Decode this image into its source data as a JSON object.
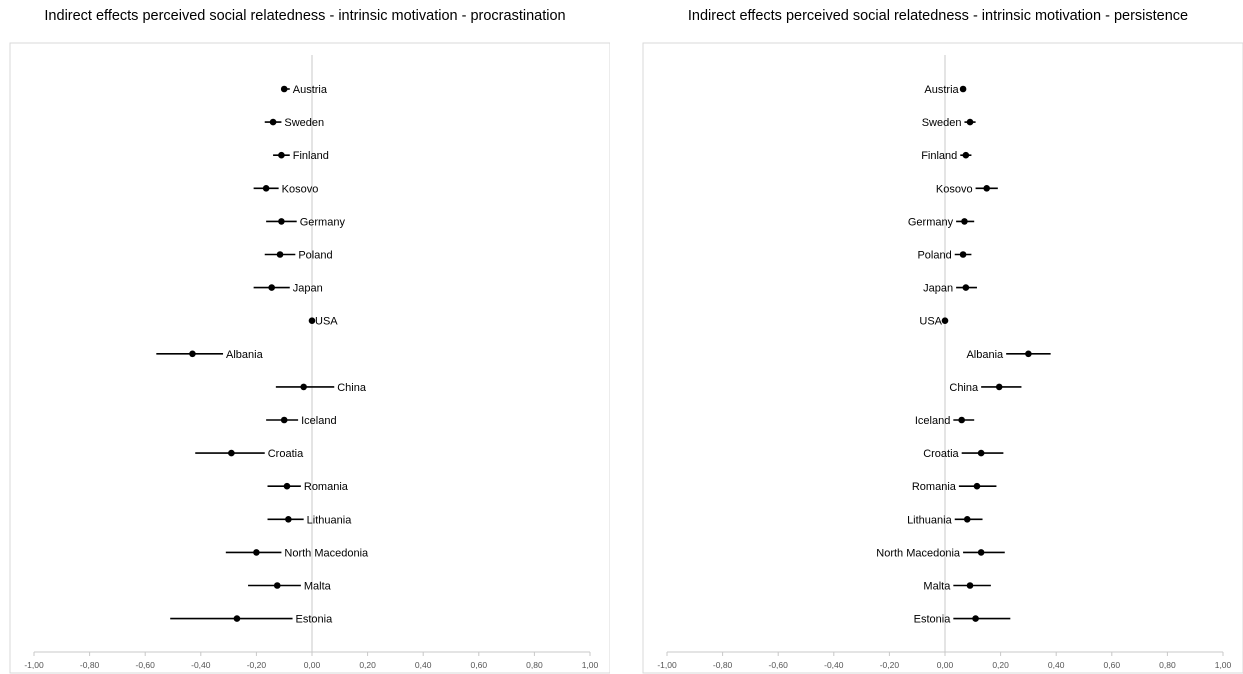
{
  "chart_data": [
    {
      "type": "forest",
      "title": "Indirect effects perceived social relatedness - intrinsic motivation - procrastination",
      "xlim": [
        -1.0,
        1.0
      ],
      "ticks": [
        "-1,00",
        "-0,80",
        "-0,60",
        "-0,40",
        "-0,20",
        "0,00",
        "0,20",
        "0,40",
        "0,60",
        "0,80",
        "1,00"
      ],
      "label_side": "right",
      "grid": false,
      "points": [
        {
          "country": "Austria",
          "est": -0.1,
          "lo": -0.11,
          "hi": -0.08
        },
        {
          "country": "Sweden",
          "est": -0.14,
          "lo": -0.17,
          "hi": -0.11
        },
        {
          "country": "Finland",
          "est": -0.11,
          "lo": -0.14,
          "hi": -0.08
        },
        {
          "country": "Kosovo",
          "est": -0.165,
          "lo": -0.21,
          "hi": -0.12
        },
        {
          "country": "Germany",
          "est": -0.11,
          "lo": -0.165,
          "hi": -0.055
        },
        {
          "country": "Poland",
          "est": -0.115,
          "lo": -0.17,
          "hi": -0.06
        },
        {
          "country": "Japan",
          "est": -0.145,
          "lo": -0.21,
          "hi": -0.08
        },
        {
          "country": "USA",
          "est": 0.0,
          "lo": 0.0,
          "hi": 0.0
        },
        {
          "country": "Albania",
          "est": -0.43,
          "lo": -0.56,
          "hi": -0.32
        },
        {
          "country": "China",
          "est": -0.03,
          "lo": -0.13,
          "hi": 0.08
        },
        {
          "country": "Iceland",
          "est": -0.1,
          "lo": -0.165,
          "hi": -0.05
        },
        {
          "country": "Croatia",
          "est": -0.29,
          "lo": -0.42,
          "hi": -0.17
        },
        {
          "country": "Romania",
          "est": -0.09,
          "lo": -0.16,
          "hi": -0.04
        },
        {
          "country": "Lithuania",
          "est": -0.085,
          "lo": -0.16,
          "hi": -0.03
        },
        {
          "country": "North Macedonia",
          "est": -0.2,
          "lo": -0.31,
          "hi": -0.11
        },
        {
          "country": "Malta",
          "est": -0.125,
          "lo": -0.23,
          "hi": -0.04
        },
        {
          "country": "Estonia",
          "est": -0.27,
          "lo": -0.51,
          "hi": -0.07
        }
      ]
    },
    {
      "type": "forest",
      "title": "Indirect effects perceived social relatedness - intrinsic motivation - persistence",
      "xlim": [
        -1.0,
        1.0
      ],
      "ticks": [
        "-1,00",
        "-0,80",
        "-0,60",
        "-0,40",
        "-0,20",
        "0,00",
        "0,20",
        "0,40",
        "0,60",
        "0,80",
        "1,00"
      ],
      "label_side": "left",
      "grid": false,
      "points": [
        {
          "country": "Austria",
          "est": 0.065,
          "lo": 0.06,
          "hi": 0.07
        },
        {
          "country": "Sweden",
          "est": 0.09,
          "lo": 0.07,
          "hi": 0.11
        },
        {
          "country": "Finland",
          "est": 0.075,
          "lo": 0.055,
          "hi": 0.095
        },
        {
          "country": "Kosovo",
          "est": 0.15,
          "lo": 0.11,
          "hi": 0.19
        },
        {
          "country": "Germany",
          "est": 0.07,
          "lo": 0.04,
          "hi": 0.105
        },
        {
          "country": "Poland",
          "est": 0.065,
          "lo": 0.035,
          "hi": 0.095
        },
        {
          "country": "Japan",
          "est": 0.075,
          "lo": 0.04,
          "hi": 0.115
        },
        {
          "country": "USA",
          "est": 0.0,
          "lo": 0.0,
          "hi": 0.0
        },
        {
          "country": "Albania",
          "est": 0.3,
          "lo": 0.22,
          "hi": 0.38
        },
        {
          "country": "China",
          "est": 0.195,
          "lo": 0.13,
          "hi": 0.275
        },
        {
          "country": "Iceland",
          "est": 0.06,
          "lo": 0.03,
          "hi": 0.105
        },
        {
          "country": "Croatia",
          "est": 0.13,
          "lo": 0.06,
          "hi": 0.21
        },
        {
          "country": "Romania",
          "est": 0.115,
          "lo": 0.05,
          "hi": 0.185
        },
        {
          "country": "Lithuania",
          "est": 0.08,
          "lo": 0.035,
          "hi": 0.135
        },
        {
          "country": "North Macedonia",
          "est": 0.13,
          "lo": 0.065,
          "hi": 0.215
        },
        {
          "country": "Malta",
          "est": 0.09,
          "lo": 0.03,
          "hi": 0.165
        },
        {
          "country": "Estonia",
          "est": 0.11,
          "lo": 0.03,
          "hi": 0.235
        }
      ]
    }
  ]
}
